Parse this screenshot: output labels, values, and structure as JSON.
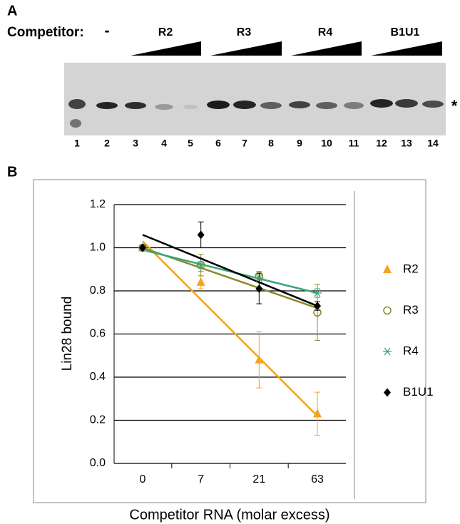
{
  "panel_a": {
    "label": "A",
    "competitor_label": "Competitor:",
    "no_competitor": "-",
    "groups": [
      "R2",
      "R3",
      "R4",
      "B1U1"
    ],
    "lanes": [
      "1",
      "2",
      "3",
      "4",
      "5",
      "6",
      "7",
      "8",
      "9",
      "10",
      "11",
      "12",
      "13",
      "14"
    ],
    "band_marker": "*"
  },
  "chart_data": {
    "type": "line",
    "panel_label": "B",
    "y_label": "Lin28 bound",
    "x_label": "Competitor RNA (molar excess)",
    "categories": [
      "0",
      "7",
      "21",
      "63"
    ],
    "ylim": [
      0,
      1.2
    ],
    "yticks": [
      {
        "value": 0,
        "label": "0.0"
      },
      {
        "value": 0.2,
        "label": "0.2"
      },
      {
        "value": 0.4,
        "label": "0.4"
      },
      {
        "value": 0.6,
        "label": "0.6"
      },
      {
        "value": 0.8,
        "label": "0.8"
      },
      {
        "value": 1,
        "label": "1.0"
      },
      {
        "value": 1.2,
        "label": "1.2"
      }
    ],
    "grid": true,
    "series": [
      {
        "name": "R2",
        "color": "#f5a21e",
        "marker": "triangle",
        "values": [
          1.0,
          0.84,
          0.48,
          0.23
        ],
        "errors": [
          0,
          0.03,
          0.13,
          0.1
        ],
        "trend": [
          1.03,
          0.22
        ]
      },
      {
        "name": "R3",
        "color": "#8a8a2a",
        "marker": "circle",
        "values": [
          1.0,
          0.92,
          0.87,
          0.7
        ],
        "errors": [
          0.01,
          0.05,
          0.02,
          0.13
        ],
        "trend": [
          1.0,
          0.72
        ]
      },
      {
        "name": "R4",
        "color": "#3aa57a",
        "marker": "asterisk",
        "values": [
          1.0,
          0.92,
          0.86,
          0.79
        ],
        "errors": [
          0.01,
          0.03,
          0.02,
          0.02
        ],
        "trend": [
          0.99,
          0.79
        ]
      },
      {
        "name": "B1U1",
        "color": "#000000",
        "marker": "diamond",
        "values": [
          1.0,
          1.06,
          0.81,
          0.73
        ],
        "errors": [
          0.01,
          0.06,
          0.07,
          0.02
        ],
        "trend": [
          1.06,
          0.73
        ]
      }
    ]
  }
}
